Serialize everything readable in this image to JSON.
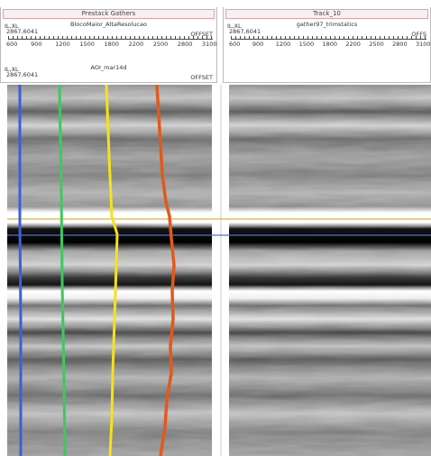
{
  "panels": [
    {
      "title": "Prestack Gathers",
      "rows": [
        {
          "key_label": "IL,XL",
          "key_value": "2867,6041",
          "name": "BlocoMaior_AltaResolucao",
          "axis_label": "OFFSET",
          "ticks": [
            "600",
            "900",
            "1200",
            "1500",
            "1800",
            "2200",
            "2500",
            "2800",
            "3100"
          ]
        },
        {
          "key_label": "IL,XL",
          "key_value": "2867,6041",
          "name": "AOI_mar14d",
          "axis_label": "OFFSET"
        }
      ]
    },
    {
      "title": "Track_10",
      "rows": [
        {
          "key_label": "IL,XL",
          "key_value": "2867,6041",
          "name": "gather97_trimstatics",
          "axis_label": "OFFS",
          "ticks": [
            "600",
            "900",
            "1200",
            "1500",
            "1800",
            "2200",
            "2500",
            "2800",
            "3100"
          ]
        }
      ]
    }
  ]
}
